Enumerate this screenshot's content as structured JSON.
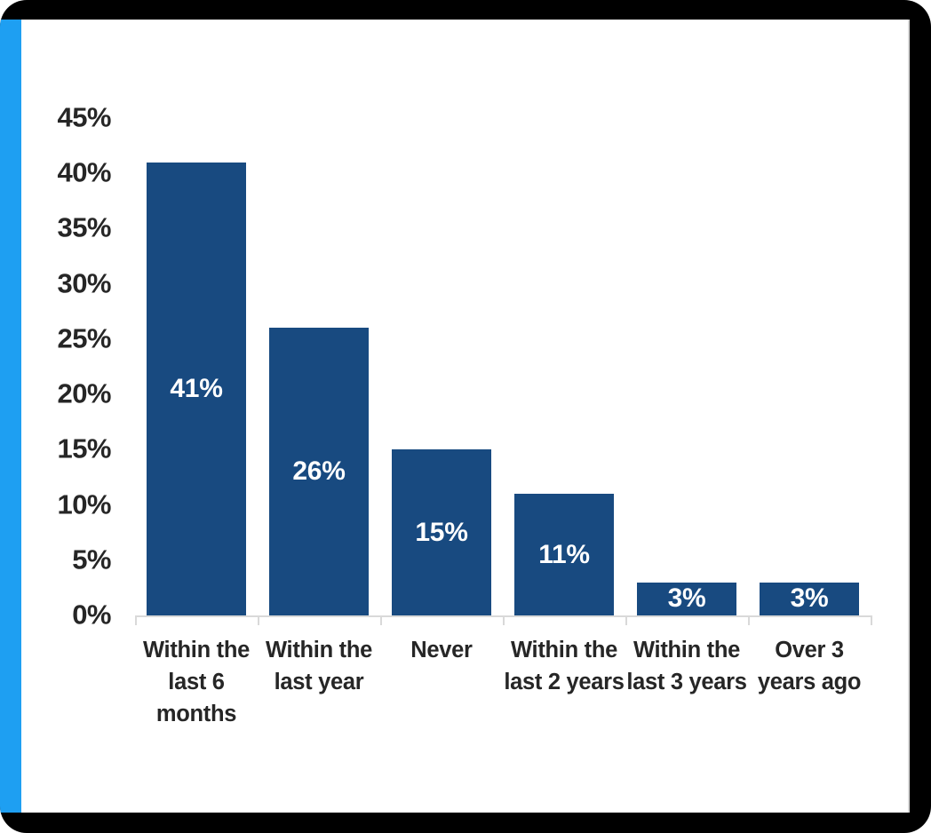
{
  "colors": {
    "frame": "#000000",
    "accent": "#1E9FF2",
    "bar_fill": "#184A80",
    "axis_line": "#D9D9D9",
    "axis_text": "#262626",
    "value_label_text": "#FFFFFF",
    "panel_background": "#FFFFFF"
  },
  "chart_data": {
    "type": "bar",
    "title": "",
    "xlabel": "",
    "ylabel": "",
    "categories": [
      "Within the last 6 months",
      "Within the last year",
      "Never",
      "Within the last 2 years",
      "Within the last 3 years",
      "Over 3 years ago"
    ],
    "category_lines": [
      [
        "Within the",
        "last 6",
        "months"
      ],
      [
        "Within the",
        "last year"
      ],
      [
        "Never"
      ],
      [
        "Within the",
        "last 2 years"
      ],
      [
        "Within the",
        "last 3 years"
      ],
      [
        "Over 3",
        "years ago"
      ]
    ],
    "values": [
      41,
      26,
      15,
      11,
      3,
      3
    ],
    "data_labels": [
      "41%",
      "26%",
      "15%",
      "11%",
      "3%",
      "3%"
    ],
    "y_ticks": [
      {
        "value": 0,
        "label": "0%"
      },
      {
        "value": 5,
        "label": "5%"
      },
      {
        "value": 10,
        "label": "10%"
      },
      {
        "value": 15,
        "label": "15%"
      },
      {
        "value": 20,
        "label": "20%"
      },
      {
        "value": 25,
        "label": "25%"
      },
      {
        "value": 30,
        "label": "30%"
      },
      {
        "value": 35,
        "label": "35%"
      },
      {
        "value": 40,
        "label": "40%"
      },
      {
        "value": 45,
        "label": "45%"
      }
    ],
    "ylim": [
      0,
      45
    ],
    "grid": false,
    "legend": null,
    "data_labels_position": "inside-center",
    "bar_color": "#184A80"
  }
}
